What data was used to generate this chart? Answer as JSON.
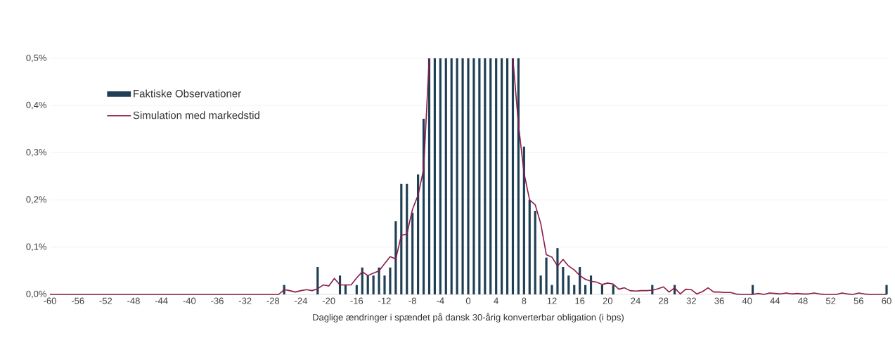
{
  "chart_data": {
    "type": "bar",
    "xlabel": "Daglige ændringer i spændet på dansk 30-årig konverterbar obligation (i bps)",
    "x": [
      -60,
      -59.2,
      -58.4,
      -57.6,
      -56.8,
      -56,
      -55.2,
      -54.4,
      -53.6,
      -52.8,
      -52,
      -51.2,
      -50.4,
      -49.6,
      -48.8,
      -48,
      -47.2,
      -46.4,
      -45.6,
      -44.8,
      -44,
      -43.2,
      -42.4,
      -41.6,
      -40.8,
      -40,
      -39.2,
      -38.4,
      -37.6,
      -36.8,
      -36,
      -35.2,
      -34.4,
      -33.6,
      -32.8,
      -32,
      -31.2,
      -30.4,
      -29.6,
      -28.8,
      -28,
      -27.2,
      -26.4,
      -25.6,
      -24.8,
      -24,
      -23.2,
      -22.4,
      -21.6,
      -20.8,
      -20,
      -19.2,
      -18.4,
      -17.6,
      -16.8,
      -16,
      -15.2,
      -14.4,
      -13.6,
      -12.8,
      -12,
      -11.2,
      -10.4,
      -9.6,
      -8.8,
      -8,
      -7.2,
      -6.4,
      -5.6,
      -4.8,
      -4,
      -3.2,
      -2.4,
      -1.6,
      -0.8,
      0,
      0.8,
      1.6,
      2.4,
      3.2,
      4,
      4.8,
      5.6,
      6.4,
      7.2,
      8,
      8.8,
      9.6,
      10.4,
      11.2,
      12,
      12.8,
      13.6,
      14.4,
      15.2,
      16,
      16.8,
      17.6,
      18.4,
      19.2,
      20,
      20.8,
      21.6,
      22.4,
      23.2,
      24,
      24.8,
      25.6,
      26.4,
      27.2,
      28,
      28.8,
      29.6,
      30.4,
      31.2,
      32,
      32.8,
      33.6,
      34.4,
      35.2,
      36,
      36.8,
      37.6,
      38.4,
      39.2,
      40,
      40.8,
      41.6,
      42.4,
      43.2,
      44,
      44.8,
      45.6,
      46.4,
      47.2,
      48,
      48.8,
      49.6,
      50.4,
      51.2,
      52,
      52.8,
      53.6,
      54.4,
      55.2,
      56,
      56.8,
      57.6,
      58.4,
      59.2,
      60
    ],
    "series": [
      {
        "name": "Faktiske Observationer",
        "color": "#1f3f55",
        "values": [
          0,
          0,
          0,
          0,
          0,
          0,
          0,
          0,
          0,
          0,
          0,
          0,
          0,
          0,
          0,
          0,
          0,
          0,
          0,
          0,
          0,
          0,
          0,
          0,
          0,
          0,
          0,
          0,
          0,
          0,
          0,
          0,
          0,
          0,
          0,
          0,
          0,
          0,
          0,
          0,
          0,
          0,
          0.02,
          0,
          0,
          0,
          0,
          0,
          0.058,
          0,
          0,
          0,
          0.04,
          0.02,
          0,
          0.02,
          0.057,
          0.04,
          0.04,
          0.057,
          0.04,
          0.057,
          0.155,
          0.234,
          0.234,
          0.173,
          0.254,
          0.372,
          0.5,
          0.5,
          0.5,
          0.5,
          0.5,
          0.5,
          0.5,
          0.5,
          0.5,
          0.5,
          0.5,
          0.5,
          0.5,
          0.5,
          0.5,
          0.5,
          0.5,
          0.313,
          0.2,
          0.177,
          0.04,
          0.078,
          0.02,
          0.098,
          0.058,
          0.04,
          0.02,
          0.058,
          0.02,
          0.04,
          0,
          0.02,
          0,
          0.02,
          0,
          0,
          0,
          0,
          0,
          0,
          0.02,
          0,
          0,
          0,
          0.02,
          0,
          0,
          0,
          0,
          0,
          0,
          0,
          0,
          0,
          0,
          0,
          0,
          0,
          0.02,
          0,
          0,
          0,
          0,
          0,
          0,
          0,
          0,
          0,
          0,
          0,
          0,
          0,
          0,
          0,
          0,
          0,
          0,
          0,
          0,
          0,
          0,
          0,
          0.02
        ]
      },
      {
        "name": "Simulation med markedstid",
        "type": "line",
        "color": "#8b1a4a",
        "values": [
          0,
          0,
          0,
          0,
          0,
          0,
          0,
          0,
          0,
          0,
          0,
          0,
          0,
          0,
          0,
          0,
          0,
          0,
          0,
          0,
          0,
          0,
          0,
          0,
          0,
          0,
          0,
          0,
          0,
          0,
          0,
          0,
          0,
          0,
          0,
          0,
          0,
          0,
          0,
          0,
          0,
          0,
          0.01,
          0.008,
          0.005,
          0.008,
          0.01,
          0.008,
          0.012,
          0.02,
          0.018,
          0.034,
          0.02,
          0.02,
          0.02,
          0.035,
          0.048,
          0.04,
          0.045,
          0.05,
          0.065,
          0.08,
          0.075,
          0.125,
          0.128,
          0.18,
          0.21,
          0.265,
          0.5,
          null,
          null,
          null,
          null,
          null,
          null,
          null,
          null,
          null,
          null,
          null,
          null,
          null,
          null,
          0.5,
          0.36,
          0.257,
          0.2,
          0.19,
          0.15,
          0.084,
          0.079,
          0.06,
          0.074,
          0.06,
          0.052,
          0.04,
          0.032,
          0.028,
          0.026,
          0.021,
          0.024,
          0.022,
          0.011,
          0.014,
          0.008,
          0.007,
          0.008,
          0.008,
          0.009,
          0.012,
          0.016,
          0.005,
          0.014,
          0.001,
          0.011,
          0.01,
          0.001,
          0.006,
          0.014,
          0.005,
          0.005,
          0.004,
          0.004,
          0.001,
          0,
          0,
          0,
          0.002,
          0,
          0.003,
          0.002,
          0.001,
          0.003,
          0.001,
          0.002,
          0.001,
          0.001,
          0.003,
          0.001,
          0,
          0,
          0,
          0.003,
          0.001,
          0,
          0.003,
          0.001,
          0,
          0,
          0,
          0
        ]
      }
    ],
    "xlim": [
      -60,
      60
    ],
    "xticks": [
      -60,
      -56,
      -52,
      -48,
      -44,
      -40,
      -36,
      -32,
      -28,
      -24,
      -20,
      -16,
      -12,
      -8,
      -4,
      0,
      4,
      8,
      12,
      16,
      20,
      24,
      28,
      32,
      36,
      40,
      44,
      48,
      52,
      56,
      60
    ],
    "ylim": [
      0,
      0.5
    ],
    "yticks": [
      {
        "value": 0,
        "label": "0,0%"
      },
      {
        "value": 0.1,
        "label": "0,1%"
      },
      {
        "value": 0.2,
        "label": "0,2%"
      },
      {
        "value": 0.3,
        "label": "0,3%"
      },
      {
        "value": 0.4,
        "label": "0,4%"
      },
      {
        "value": 0.5,
        "label": "0,5%"
      }
    ],
    "grid": "y",
    "legend": "top left"
  }
}
